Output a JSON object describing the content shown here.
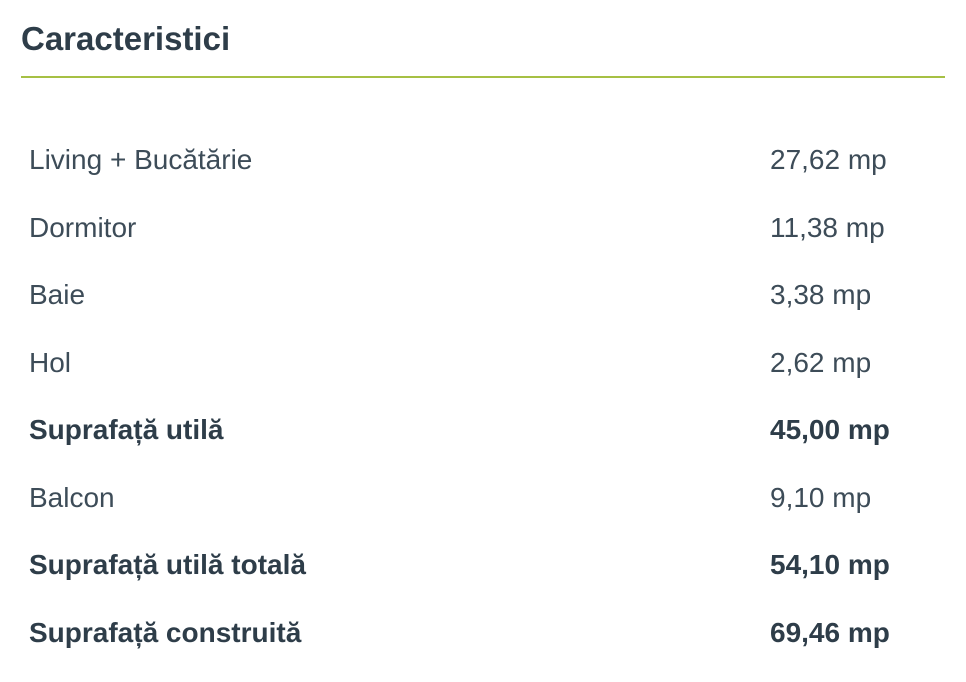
{
  "section": {
    "title": "Caracteristici"
  },
  "colors": {
    "heading": "#2e3d49",
    "text": "#3d4c58",
    "text-bold": "#2e3d49",
    "divider": "#a6c044",
    "bg": "#ffffff"
  },
  "unit": "mp",
  "rows": [
    {
      "label": "Living + Bucătărie",
      "value": "27,62 mp",
      "bold": false
    },
    {
      "label": "Dormitor",
      "value": "11,38 mp",
      "bold": false
    },
    {
      "label": "Baie",
      "value": "3,38 mp",
      "bold": false
    },
    {
      "label": "Hol",
      "value": "2,62 mp",
      "bold": false
    },
    {
      "label": "Suprafață utilă",
      "value": "45,00 mp",
      "bold": true
    },
    {
      "label": "Balcon",
      "value": "9,10 mp",
      "bold": false
    },
    {
      "label": "Suprafață utilă totală",
      "value": "54,10 mp",
      "bold": true
    },
    {
      "label": "Suprafață construită",
      "value": "69,46 mp",
      "bold": true
    }
  ]
}
